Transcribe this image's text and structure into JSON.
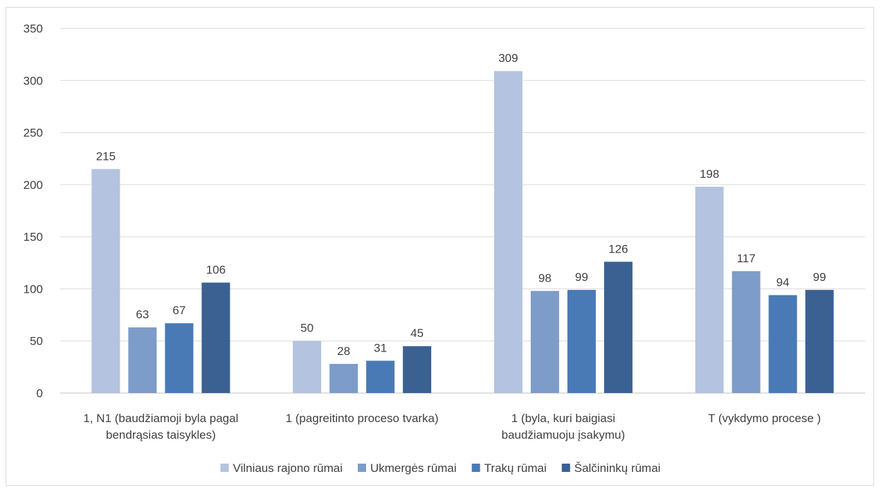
{
  "chart_data": {
    "type": "bar",
    "categories": [
      [
        "1, N1 (baudžiamoji byla pagal",
        "bendrąsias taisykles)"
      ],
      [
        "1 (pagreitinto proceso tvarka)"
      ],
      [
        "1 (byla, kuri baigiasi",
        "baudžiamuoju įsakymu)"
      ],
      [
        "T (vykdymo procese )"
      ]
    ],
    "series": [
      {
        "name": "Vilniaus rajono rūmai",
        "color": "#b4c3df",
        "values": [
          215,
          50,
          309,
          198
        ]
      },
      {
        "name": "Ukmergės rūmai",
        "color": "#7d9cc9",
        "values": [
          63,
          28,
          98,
          117
        ]
      },
      {
        "name": "Trakų rūmai",
        "color": "#4a7ab5",
        "values": [
          67,
          31,
          99,
          94
        ]
      },
      {
        "name": "Šalčininkų rūmai",
        "color": "#3a6192",
        "values": [
          106,
          45,
          126,
          99
        ]
      }
    ],
    "ylim": [
      0,
      350
    ],
    "yticks": [
      0,
      50,
      100,
      150,
      200,
      250,
      300,
      350
    ],
    "grid": true,
    "legend": "bottom",
    "title": "",
    "xlabel": "",
    "ylabel": ""
  }
}
